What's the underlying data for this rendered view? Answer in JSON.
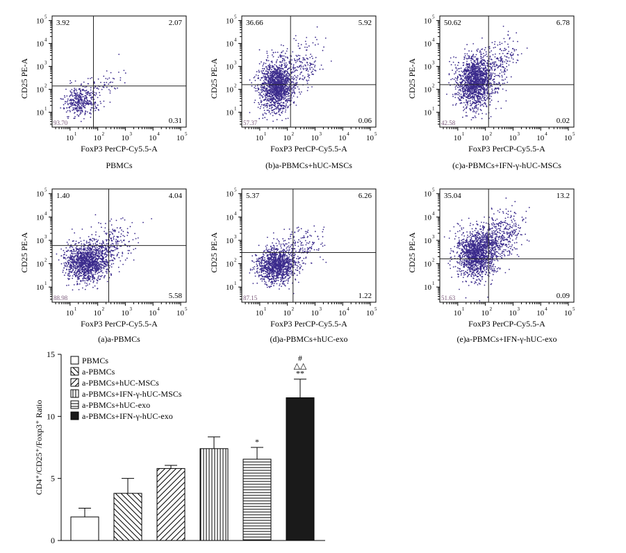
{
  "chart_data": [
    {
      "type": "scatter",
      "panel_id": "panel-pbmcs",
      "title": "PBMCs",
      "xlabel": "FoxP3 PerCP-Cy5.5-A",
      "ylabel": "CD25 PE-A",
      "quadrants": {
        "ul": "3.92",
        "ur": "2.07",
        "lr": "0.31",
        "ll": "93.70"
      },
      "gate": {
        "x": 70,
        "y": 140
      },
      "cloud": {
        "cx": 25,
        "cy": 30,
        "sx": 0.3,
        "sy": 0.32,
        "n": 450,
        "tail": 0.15
      }
    },
    {
      "type": "scatter",
      "panel_id": "panel-b",
      "title": "(b)a-PBMCs+hUC-MSCs",
      "xlabel": "FoxP3 PerCP-Cy5.5-A",
      "ylabel": "CD25 PE-A",
      "quadrants": {
        "ul": "36.66",
        "ur": "5.92",
        "lr": "0.06",
        "ll": "57.37"
      },
      "gate": {
        "x": 130,
        "y": 160
      },
      "cloud": {
        "cx": 40,
        "cy": 140,
        "sx": 0.3,
        "sy": 0.55,
        "n": 1600,
        "tail": 0.2
      }
    },
    {
      "type": "scatter",
      "panel_id": "panel-c",
      "title": "(c)a-PBMCs+IFN-γ-hUC-MSCs",
      "xlabel": "FoxP3 PerCP-Cy5.5-A",
      "ylabel": "CD25 PE-A",
      "quadrants": {
        "ul": "50.62",
        "ur": "6.78",
        "lr": "0.02",
        "ll": "42.58"
      },
      "gate": {
        "x": 130,
        "y": 160
      },
      "cloud": {
        "cx": 40,
        "cy": 200,
        "sx": 0.3,
        "sy": 0.55,
        "n": 1700,
        "tail": 0.2
      }
    },
    {
      "type": "scatter",
      "panel_id": "panel-a",
      "title": "(a)a-PBMCs",
      "xlabel": "FoxP3 PerCP-Cy5.5-A",
      "ylabel": "CD25 PE-A",
      "quadrants": {
        "ul": "1.40",
        "ur": "4.04",
        "lr": "5.58",
        "ll": "88.98"
      },
      "gate": {
        "x": 250,
        "y": 600
      },
      "cloud": {
        "cx": 40,
        "cy": 110,
        "sx": 0.38,
        "sy": 0.38,
        "n": 1500,
        "tail": 0.25
      }
    },
    {
      "type": "scatter",
      "panel_id": "panel-d",
      "title": "(d)a-PBMCs+hUC-exo",
      "xlabel": "FoxP3 PerCP-Cy5.5-A",
      "ylabel": "CD25 PE-A",
      "quadrants": {
        "ul": "5.37",
        "ur": "6.26",
        "lr": "1.22",
        "ll": "87.15"
      },
      "gate": {
        "x": 160,
        "y": 300
      },
      "cloud": {
        "cx": 40,
        "cy": 80,
        "sx": 0.33,
        "sy": 0.38,
        "n": 1300,
        "tail": 0.2
      }
    },
    {
      "type": "scatter",
      "panel_id": "panel-e",
      "title": "(e)a-PBMCs+IFN-γ-hUC-exo",
      "xlabel": "FoxP3 PerCP-Cy5.5-A",
      "ylabel": "CD25 PE-A",
      "quadrants": {
        "ul": "35.04",
        "ur": "13.2",
        "lr": "0.09",
        "ll": "51.63"
      },
      "gate": {
        "x": 130,
        "y": 160
      },
      "cloud": {
        "cx": 45,
        "cy": 250,
        "sx": 0.33,
        "sy": 0.5,
        "n": 1800,
        "tail": 0.35
      }
    },
    {
      "type": "bar",
      "ylabel": "CD4⁺/CD25⁺/Foxp3⁺ Ratio",
      "ylim": [
        0,
        15
      ],
      "yticks": [
        "0",
        "5",
        "10",
        "15"
      ],
      "categories": [
        "PBMCs",
        "a-PBMCs",
        "a-PBMCs+hUC-MSCs",
        "a-PBMCs+IFN-γ-hUC-MSCs",
        "a-PBMCs+hUC-exo",
        "a-PBMCs+IFN-γ-hUC-exo"
      ],
      "values": [
        1.9,
        3.8,
        5.8,
        7.4,
        6.55,
        11.5
      ],
      "errors": [
        0.7,
        1.2,
        0.25,
        0.95,
        0.95,
        1.5
      ],
      "patterns": [
        "none",
        "back",
        "fwd",
        "vert",
        "horiz",
        "solid"
      ],
      "significance": [
        "",
        "",
        "",
        "",
        "*",
        "#|△△|**"
      ]
    }
  ],
  "axis_tick_labels": [
    "1",
    "2",
    "3",
    "4",
    "5"
  ],
  "axis_tick_base": "10"
}
